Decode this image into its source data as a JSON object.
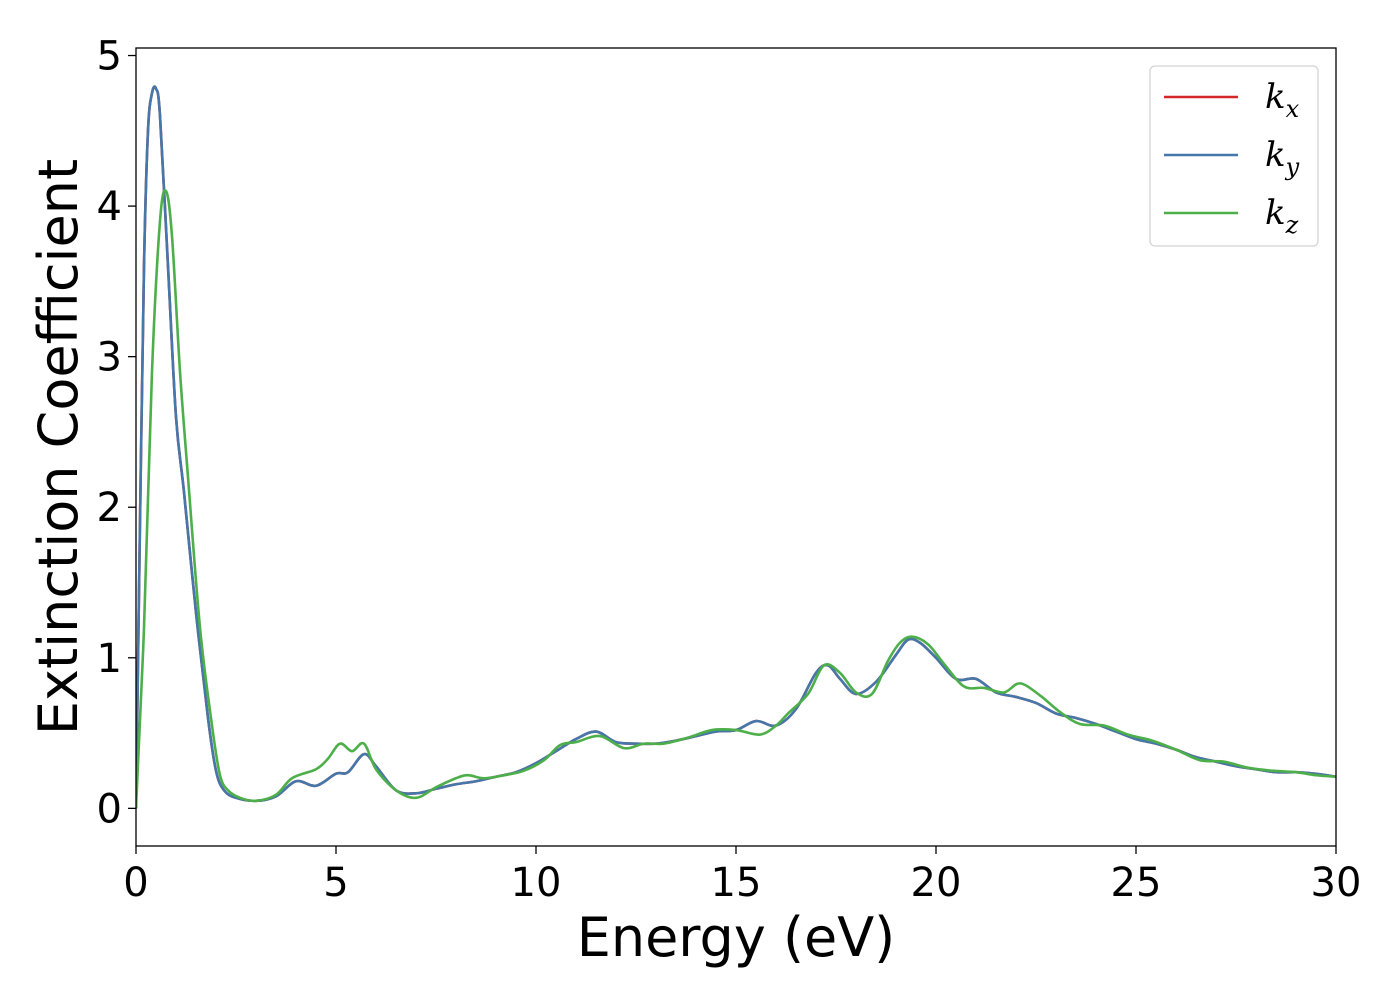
{
  "chart_data": {
    "type": "line",
    "xlabel": "Energy (eV)",
    "ylabel": "Extinction Coefficient",
    "xlim": [
      0,
      30
    ],
    "ylim": [
      -0.25,
      5.05
    ],
    "xticks": [
      0,
      5,
      10,
      15,
      20,
      25,
      30
    ],
    "xtick_labels": [
      "0",
      "5",
      "10",
      "15",
      "20",
      "25",
      "30"
    ],
    "yticks": [
      0,
      1,
      2,
      3,
      4,
      5
    ],
    "ytick_labels": [
      "0",
      "1",
      "2",
      "3",
      "4",
      "5"
    ],
    "grid": false,
    "legend_position": "top-right",
    "series": [
      {
        "name": "k",
        "subscript": "x",
        "color": "#d62728",
        "x": [
          0,
          0.1,
          0.2,
          0.3,
          0.4,
          0.5,
          0.6,
          0.8,
          1.0,
          1.2,
          1.5,
          1.8,
          2.0,
          2.2,
          2.5,
          3.0,
          3.5,
          4.0,
          4.5,
          5.0,
          5.3,
          5.7,
          6.0,
          6.5,
          7.0,
          7.5,
          8.0,
          8.5,
          9.0,
          9.5,
          10.0,
          10.5,
          11.0,
          11.5,
          12.0,
          12.5,
          13.0,
          13.5,
          14.0,
          14.5,
          15.0,
          15.5,
          16.0,
          16.5,
          17.0,
          17.3,
          17.6,
          18.0,
          18.5,
          19.0,
          19.3,
          19.6,
          20.0,
          20.5,
          21.0,
          21.5,
          22.0,
          22.5,
          23.0,
          23.5,
          24.0,
          24.5,
          25.0,
          25.5,
          26.0,
          26.5,
          27.0,
          27.5,
          28.0,
          28.5,
          29.0,
          29.5,
          30.0
        ],
        "values": [
          0,
          1.9,
          3.6,
          4.5,
          4.75,
          4.78,
          4.6,
          3.6,
          2.6,
          2.1,
          1.3,
          0.6,
          0.25,
          0.12,
          0.07,
          0.05,
          0.08,
          0.18,
          0.15,
          0.23,
          0.24,
          0.36,
          0.28,
          0.12,
          0.1,
          0.13,
          0.16,
          0.18,
          0.21,
          0.24,
          0.3,
          0.38,
          0.46,
          0.51,
          0.44,
          0.43,
          0.43,
          0.45,
          0.48,
          0.51,
          0.52,
          0.58,
          0.55,
          0.66,
          0.9,
          0.95,
          0.86,
          0.76,
          0.84,
          1.02,
          1.12,
          1.1,
          1.0,
          0.86,
          0.86,
          0.77,
          0.74,
          0.7,
          0.63,
          0.6,
          0.56,
          0.51,
          0.46,
          0.43,
          0.39,
          0.34,
          0.31,
          0.28,
          0.26,
          0.24,
          0.24,
          0.23,
          0.21
        ]
      },
      {
        "name": "k",
        "subscript": "y",
        "color": "#4477aa",
        "x": [
          0,
          0.1,
          0.2,
          0.3,
          0.4,
          0.5,
          0.6,
          0.8,
          1.0,
          1.2,
          1.5,
          1.8,
          2.0,
          2.2,
          2.5,
          3.0,
          3.5,
          4.0,
          4.5,
          5.0,
          5.3,
          5.7,
          6.0,
          6.5,
          7.0,
          7.5,
          8.0,
          8.5,
          9.0,
          9.5,
          10.0,
          10.5,
          11.0,
          11.5,
          12.0,
          12.5,
          13.0,
          13.5,
          14.0,
          14.5,
          15.0,
          15.5,
          16.0,
          16.5,
          17.0,
          17.3,
          17.6,
          18.0,
          18.5,
          19.0,
          19.3,
          19.6,
          20.0,
          20.5,
          21.0,
          21.5,
          22.0,
          22.5,
          23.0,
          23.5,
          24.0,
          24.5,
          25.0,
          25.5,
          26.0,
          26.5,
          27.0,
          27.5,
          28.0,
          28.5,
          29.0,
          29.5,
          30.0
        ],
        "values": [
          0,
          1.9,
          3.6,
          4.5,
          4.75,
          4.78,
          4.6,
          3.6,
          2.6,
          2.1,
          1.3,
          0.6,
          0.25,
          0.12,
          0.07,
          0.05,
          0.08,
          0.18,
          0.15,
          0.23,
          0.24,
          0.36,
          0.28,
          0.12,
          0.1,
          0.13,
          0.16,
          0.18,
          0.21,
          0.24,
          0.3,
          0.38,
          0.46,
          0.51,
          0.44,
          0.43,
          0.43,
          0.45,
          0.48,
          0.51,
          0.52,
          0.58,
          0.55,
          0.66,
          0.9,
          0.95,
          0.86,
          0.76,
          0.84,
          1.02,
          1.12,
          1.1,
          1.0,
          0.86,
          0.86,
          0.77,
          0.74,
          0.7,
          0.63,
          0.6,
          0.56,
          0.51,
          0.46,
          0.43,
          0.39,
          0.34,
          0.31,
          0.28,
          0.26,
          0.24,
          0.24,
          0.23,
          0.21
        ]
      },
      {
        "name": "k",
        "subscript": "z",
        "color": "#4daf4a",
        "x": [
          0,
          0.2,
          0.4,
          0.6,
          0.75,
          0.9,
          1.1,
          1.3,
          1.6,
          1.9,
          2.1,
          2.3,
          2.6,
          3.0,
          3.5,
          3.9,
          4.5,
          4.8,
          5.1,
          5.4,
          5.7,
          6.0,
          6.5,
          7.0,
          7.5,
          8.0,
          8.3,
          8.7,
          9.2,
          9.7,
          10.2,
          10.6,
          11.0,
          11.6,
          12.2,
          12.7,
          13.2,
          13.8,
          14.4,
          15.0,
          15.6,
          16.0,
          16.3,
          16.8,
          17.2,
          17.6,
          18.0,
          18.4,
          18.8,
          19.1,
          19.4,
          19.8,
          20.2,
          20.7,
          21.2,
          21.7,
          22.1,
          22.6,
          23.1,
          23.6,
          24.2,
          24.8,
          25.4,
          26.0,
          26.6,
          27.2,
          27.8,
          28.4,
          29.0,
          29.5,
          30.0
        ],
        "values": [
          0,
          1.2,
          2.9,
          3.9,
          4.1,
          3.8,
          2.9,
          2.2,
          1.2,
          0.55,
          0.22,
          0.12,
          0.07,
          0.05,
          0.09,
          0.2,
          0.26,
          0.33,
          0.43,
          0.38,
          0.43,
          0.26,
          0.12,
          0.07,
          0.14,
          0.2,
          0.22,
          0.2,
          0.22,
          0.25,
          0.32,
          0.42,
          0.44,
          0.48,
          0.4,
          0.43,
          0.43,
          0.47,
          0.52,
          0.52,
          0.49,
          0.55,
          0.63,
          0.76,
          0.95,
          0.9,
          0.77,
          0.76,
          0.98,
          1.1,
          1.14,
          1.09,
          0.96,
          0.81,
          0.8,
          0.77,
          0.83,
          0.75,
          0.64,
          0.56,
          0.55,
          0.49,
          0.45,
          0.39,
          0.32,
          0.31,
          0.27,
          0.25,
          0.24,
          0.22,
          0.21
        ]
      }
    ]
  }
}
